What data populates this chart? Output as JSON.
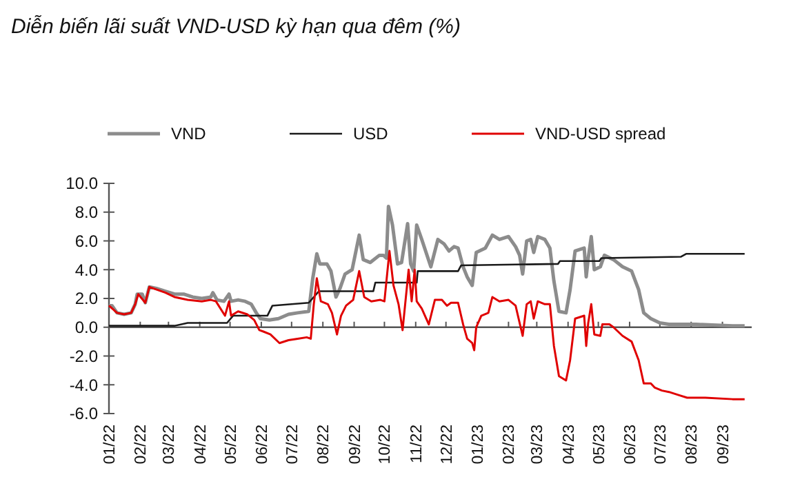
{
  "chart_data": {
    "type": "line",
    "title": "Diễn biến lãi suất VND-USD kỳ hạn qua đêm (%)",
    "xlim": [
      "2022-01-01",
      "2023-09-30"
    ],
    "xticks": [
      {
        "value": "2022-01-01",
        "label": "01/22"
      },
      {
        "value": "2022-02-01",
        "label": "02/22"
      },
      {
        "value": "2022-03-01",
        "label": "03/22"
      },
      {
        "value": "2022-04-01",
        "label": "04/22"
      },
      {
        "value": "2022-05-01",
        "label": "05/22"
      },
      {
        "value": "2022-06-01",
        "label": "06/22"
      },
      {
        "value": "2022-07-01",
        "label": "07/22"
      },
      {
        "value": "2022-08-01",
        "label": "08/22"
      },
      {
        "value": "2022-09-01",
        "label": "09/22"
      },
      {
        "value": "2022-10-01",
        "label": "10/22"
      },
      {
        "value": "2022-11-01",
        "label": "11/22"
      },
      {
        "value": "2022-12-01",
        "label": "12/22"
      },
      {
        "value": "2023-01-01",
        "label": "01/23"
      },
      {
        "value": "2023-02-01",
        "label": "02/23"
      },
      {
        "value": "2023-03-01",
        "label": "03/23"
      },
      {
        "value": "2023-04-01",
        "label": "04/23"
      },
      {
        "value": "2023-05-01",
        "label": "05/23"
      },
      {
        "value": "2023-06-01",
        "label": "06/23"
      },
      {
        "value": "2023-07-01",
        "label": "07/23"
      },
      {
        "value": "2023-08-01",
        "label": "08/23"
      },
      {
        "value": "2023-09-01",
        "label": "09/23"
      }
    ],
    "ylim": [
      -6,
      10
    ],
    "yticks": [
      {
        "value": 10,
        "label": "10.0"
      },
      {
        "value": 8,
        "label": "8.0"
      },
      {
        "value": 6,
        "label": "6.0"
      },
      {
        "value": 4,
        "label": "4.0"
      },
      {
        "value": 2,
        "label": "2.0"
      },
      {
        "value": 0,
        "label": "0.0"
      },
      {
        "value": -2,
        "label": "-2.0"
      },
      {
        "value": -4,
        "label": "-4.0"
      },
      {
        "value": -6,
        "label": "-6.0"
      }
    ],
    "legend": "top",
    "marker": "none",
    "line_style": "solid",
    "series": [
      {
        "name": "VND",
        "color": "#8c8c8c",
        "x": [
          "2022-01-01",
          "2022-01-04",
          "2022-01-09",
          "2022-01-16",
          "2022-01-23",
          "2022-01-27",
          "2022-01-29",
          "2022-02-03",
          "2022-02-06",
          "2022-02-10",
          "2022-02-17",
          "2022-02-26",
          "2022-03-07",
          "2022-03-16",
          "2022-03-25",
          "2022-04-03",
          "2022-04-12",
          "2022-04-14",
          "2022-04-18",
          "2022-04-25",
          "2022-04-30",
          "2022-05-02",
          "2022-05-09",
          "2022-05-16",
          "2022-05-22",
          "2022-05-27",
          "2022-05-31",
          "2022-06-09",
          "2022-06-18",
          "2022-06-28",
          "2022-07-07",
          "2022-07-18",
          "2022-07-22",
          "2022-07-26",
          "2022-07-29",
          "2022-08-05",
          "2022-08-09",
          "2022-08-14",
          "2022-08-18",
          "2022-08-23",
          "2022-08-30",
          "2022-09-06",
          "2022-09-10",
          "2022-09-17",
          "2022-09-26",
          "2022-09-30",
          "2022-10-03",
          "2022-10-05",
          "2022-10-09",
          "2022-10-14",
          "2022-10-18",
          "2022-10-24",
          "2022-10-27",
          "2022-10-30",
          "2022-11-02",
          "2022-11-07",
          "2022-11-16",
          "2022-11-23",
          "2022-11-29",
          "2022-12-04",
          "2022-12-09",
          "2022-12-13",
          "2022-12-18",
          "2022-12-22",
          "2022-12-27",
          "2022-12-31",
          "2023-01-09",
          "2023-01-16",
          "2023-01-23",
          "2023-02-01",
          "2023-02-08",
          "2023-02-12",
          "2023-02-15",
          "2023-02-19",
          "2023-02-23",
          "2023-02-26",
          "2023-03-02",
          "2023-03-09",
          "2023-03-14",
          "2023-03-18",
          "2023-03-23",
          "2023-03-30",
          "2023-04-03",
          "2023-04-08",
          "2023-04-17",
          "2023-04-19",
          "2023-04-21",
          "2023-04-24",
          "2023-04-27",
          "2023-05-03",
          "2023-05-07",
          "2023-05-16",
          "2023-05-25",
          "2023-06-03",
          "2023-06-10",
          "2023-06-15",
          "2023-06-22",
          "2023-07-01",
          "2023-07-10",
          "2023-07-19",
          "2023-08-06",
          "2023-09-11",
          "2023-09-23"
        ],
        "values": [
          1.5,
          1.5,
          1.0,
          0.9,
          1.0,
          1.6,
          2.3,
          2.3,
          1.7,
          2.8,
          2.7,
          2.5,
          2.3,
          2.3,
          2.1,
          2.0,
          2.1,
          2.4,
          1.9,
          1.8,
          2.3,
          1.8,
          1.9,
          1.8,
          1.6,
          1.0,
          0.6,
          0.5,
          0.6,
          0.9,
          1.0,
          1.1,
          3.4,
          5.1,
          4.4,
          4.4,
          3.9,
          2.1,
          2.7,
          3.7,
          4.0,
          6.4,
          4.7,
          4.5,
          5.0,
          5.0,
          4.8,
          8.4,
          7.1,
          4.4,
          4.5,
          7.2,
          4.4,
          3.9,
          7.1,
          6.1,
          4.2,
          6.1,
          5.8,
          5.3,
          5.6,
          5.5,
          4.2,
          3.5,
          2.9,
          5.2,
          5.5,
          6.4,
          6.1,
          6.3,
          5.6,
          5.0,
          3.7,
          6.0,
          6.1,
          5.2,
          6.3,
          6.1,
          5.5,
          3.2,
          1.1,
          1.0,
          2.6,
          5.3,
          5.5,
          3.5,
          4.8,
          6.3,
          4.0,
          4.2,
          5.0,
          4.7,
          4.2,
          3.9,
          2.6,
          1.0,
          0.6,
          0.3,
          0.2,
          0.2,
          0.2,
          0.1,
          0.1
        ]
      },
      {
        "name": "USD",
        "color": "#1a1a1a",
        "x": [
          "2022-01-01",
          "2022-03-07",
          "2022-03-20",
          "2022-04-28",
          "2022-05-04",
          "2022-06-07",
          "2022-06-12",
          "2022-07-18",
          "2022-07-28",
          "2022-09-20",
          "2022-09-22",
          "2022-11-02",
          "2022-11-03",
          "2022-12-13",
          "2022-12-16",
          "2023-03-22",
          "2023-03-24",
          "2023-05-02",
          "2023-05-04",
          "2023-07-22",
          "2023-07-27",
          "2023-09-23"
        ],
        "values": [
          0.1,
          0.1,
          0.3,
          0.3,
          0.8,
          0.8,
          1.5,
          1.7,
          2.5,
          2.5,
          3.1,
          3.1,
          3.9,
          3.9,
          4.3,
          4.4,
          4.6,
          4.6,
          4.8,
          4.9,
          5.1,
          5.1
        ]
      },
      {
        "name": "VND-USD spread",
        "color": "#e00000",
        "x": [
          "2022-01-01",
          "2022-01-09",
          "2022-01-16",
          "2022-01-23",
          "2022-01-27",
          "2022-01-30",
          "2022-02-06",
          "2022-02-10",
          "2022-02-26",
          "2022-03-07",
          "2022-03-20",
          "2022-04-03",
          "2022-04-12",
          "2022-04-17",
          "2022-04-26",
          "2022-04-30",
          "2022-05-02",
          "2022-05-09",
          "2022-05-18",
          "2022-05-25",
          "2022-05-30",
          "2022-06-03",
          "2022-06-10",
          "2022-06-19",
          "2022-06-28",
          "2022-07-07",
          "2022-07-16",
          "2022-07-20",
          "2022-07-23",
          "2022-07-26",
          "2022-07-30",
          "2022-08-06",
          "2022-08-10",
          "2022-08-15",
          "2022-08-19",
          "2022-08-24",
          "2022-08-31",
          "2022-09-06",
          "2022-09-11",
          "2022-09-18",
          "2022-09-27",
          "2022-10-01",
          "2022-10-06",
          "2022-10-10",
          "2022-10-15",
          "2022-10-19",
          "2022-10-25",
          "2022-10-28",
          "2022-10-31",
          "2022-11-02",
          "2022-11-07",
          "2022-11-14",
          "2022-11-20",
          "2022-11-27",
          "2022-12-02",
          "2022-12-06",
          "2022-12-13",
          "2022-12-18",
          "2022-12-22",
          "2022-12-27",
          "2022-12-29",
          "2022-12-31",
          "2023-01-05",
          "2023-01-12",
          "2023-01-16",
          "2023-01-23",
          "2023-02-01",
          "2023-02-08",
          "2023-02-12",
          "2023-02-15",
          "2023-02-19",
          "2023-02-23",
          "2023-02-26",
          "2023-03-02",
          "2023-03-09",
          "2023-03-14",
          "2023-03-18",
          "2023-03-23",
          "2023-03-30",
          "2023-04-03",
          "2023-04-08",
          "2023-04-17",
          "2023-04-19",
          "2023-04-21",
          "2023-04-24",
          "2023-04-27",
          "2023-05-03",
          "2023-05-05",
          "2023-05-12",
          "2023-05-16",
          "2023-05-25",
          "2023-06-03",
          "2023-06-10",
          "2023-06-15",
          "2023-06-22",
          "2023-06-26",
          "2023-07-03",
          "2023-07-10",
          "2023-07-19",
          "2023-07-28",
          "2023-08-15",
          "2023-09-11",
          "2023-09-23"
        ],
        "values": [
          1.5,
          1.0,
          0.9,
          1.0,
          1.6,
          2.3,
          1.7,
          2.8,
          2.4,
          2.1,
          1.9,
          1.8,
          1.9,
          1.8,
          0.8,
          1.8,
          0.8,
          1.1,
          0.9,
          0.5,
          -0.2,
          -0.3,
          -0.5,
          -1.1,
          -0.9,
          -0.8,
          -0.7,
          -0.8,
          1.6,
          3.4,
          1.8,
          1.6,
          1.0,
          -0.5,
          0.8,
          1.5,
          1.9,
          3.9,
          2.1,
          1.8,
          1.9,
          1.8,
          5.3,
          2.9,
          1.6,
          -0.2,
          4.0,
          1.8,
          4.0,
          1.8,
          1.3,
          0.2,
          1.9,
          1.9,
          1.5,
          1.7,
          1.7,
          0.2,
          -0.8,
          -1.1,
          -1.6,
          0,
          0.8,
          1.0,
          2.1,
          1.8,
          1.9,
          1.5,
          0.3,
          -0.6,
          1.6,
          1.8,
          0.6,
          1.8,
          1.6,
          1.6,
          -1.3,
          -3.4,
          -3.7,
          -2.3,
          0.6,
          0.8,
          -1.3,
          0.3,
          1.6,
          -0.5,
          -0.6,
          0.2,
          0.2,
          0,
          -0.6,
          -1.0,
          -2.3,
          -3.9,
          -3.9,
          -4.2,
          -4.4,
          -4.5,
          -4.7,
          -4.9,
          -4.9,
          -5.0,
          -5.0
        ]
      }
    ]
  }
}
